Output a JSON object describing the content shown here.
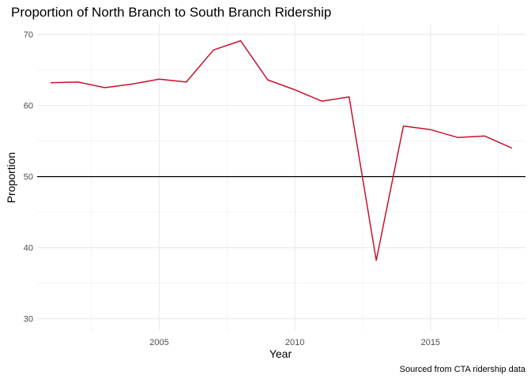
{
  "chart_data": {
    "type": "line",
    "title": "Proportion of North Branch to South Branch Ridership",
    "xlabel": "Year",
    "ylabel": "Proportion",
    "caption": "Sourced from CTA ridership data",
    "xlim": [
      2000.5,
      2018.5
    ],
    "ylim": [
      28.3,
      71.5
    ],
    "x_ticks": [
      2005,
      2010,
      2015
    ],
    "y_ticks": [
      30,
      40,
      50,
      60,
      70
    ],
    "x_minor": [
      2002.5,
      2007.5,
      2012.5,
      2017.5
    ],
    "y_minor": [
      35,
      45,
      55,
      65
    ],
    "grid": true,
    "reference_line": 50,
    "series": [
      {
        "color": "#c8102e",
        "x": [
          2001,
          2002,
          2003,
          2004,
          2005,
          2006,
          2007,
          2008,
          2009,
          2010,
          2011,
          2012,
          2013,
          2014,
          2015,
          2016,
          2017,
          2018
        ],
        "values": [
          63.2,
          63.3,
          62.5,
          63.0,
          63.7,
          63.3,
          67.8,
          69.1,
          63.6,
          62.2,
          60.6,
          61.2,
          38.2,
          57.1,
          56.6,
          55.5,
          55.7,
          54.0
        ]
      }
    ],
    "colors": {
      "grid": "#ebebeb",
      "reference": "#000000",
      "line": "#c8102e"
    }
  }
}
